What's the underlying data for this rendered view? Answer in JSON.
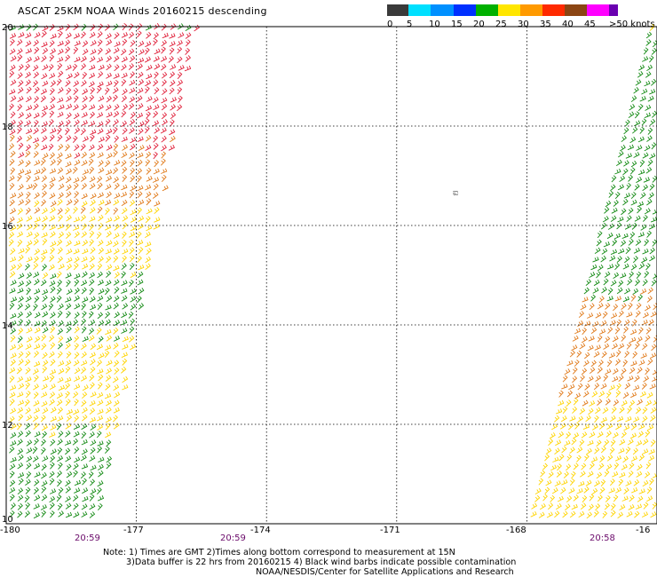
{
  "title": "ASCAT 25KM NOAA Winds 20160215 descending",
  "legend": {
    "labels": [
      "0",
      "5",
      "10",
      "15",
      "20",
      "25",
      "30",
      "35",
      "40",
      "45",
      ">50 knots"
    ],
    "colors": [
      "#3a3a3a",
      "#00e0ff",
      "#0090ff",
      "#0030ff",
      "#00b000",
      "#ffe600",
      "#ff9a00",
      "#ff2a00",
      "#8b4513",
      "#ff00ff",
      "#6a00b0"
    ]
  },
  "y_ticks": [
    "20",
    "18",
    "16",
    "14",
    "12",
    "10"
  ],
  "x_ticks": [
    "-180",
    "-177",
    "-174",
    "-171",
    "-168",
    "-16"
  ],
  "time_labels": [
    "20:59",
    "20:59",
    "20:58"
  ],
  "marker": "ಐ",
  "notes": [
    "Note: 1) Times are GMT 2)Times along bottom correspond to measurement at 15N",
    "3)Data buffer is 22 hrs from 20160215 4) Black wind barbs indicate possible contamination",
    "NOAA/NESDIS/Center for Satellite Applications and Research"
  ],
  "map_data": {
    "lon_range": [
      -180,
      -165
    ],
    "lat_range": [
      10,
      20
    ],
    "grid_lons": [
      -177,
      -174,
      -171,
      -168
    ],
    "grid_lats": [
      12,
      14,
      16,
      18
    ],
    "swaths": [
      {
        "name": "west",
        "corners_lonlat": [
          [
            -180.6,
            20
          ],
          [
            -175.6,
            20
          ],
          [
            -177.9,
            10
          ],
          [
            -183.0,
            10
          ]
        ]
      },
      {
        "name": "east",
        "corners_lonlat": [
          [
            -165.2,
            20
          ],
          [
            -165.0,
            20
          ],
          [
            -165.0,
            10
          ],
          [
            -168.0,
            10
          ]
        ]
      }
    ],
    "wind_zones_west": [
      {
        "lat_min": 17.5,
        "lat_max": 20,
        "color": "#e0203a"
      },
      {
        "lat_min": 16.3,
        "lat_max": 17.5,
        "color": "#e07a1a"
      },
      {
        "lat_min": 15.0,
        "lat_max": 16.3,
        "color": "#ffd400"
      },
      {
        "lat_min": 13.7,
        "lat_max": 15.0,
        "color": "#138a13"
      },
      {
        "lat_min": 11.8,
        "lat_max": 13.7,
        "color": "#ffd400"
      },
      {
        "lat_min": 10.0,
        "lat_max": 11.8,
        "color": "#138a13"
      }
    ],
    "wind_zones_east": [
      {
        "lat_min": 14.5,
        "lat_max": 20,
        "color": "#138a13"
      },
      {
        "lat_min": 12.5,
        "lat_max": 14.5,
        "color": "#e07a1a"
      },
      {
        "lat_min": 10.0,
        "lat_max": 12.5,
        "color": "#ffd400"
      }
    ]
  }
}
